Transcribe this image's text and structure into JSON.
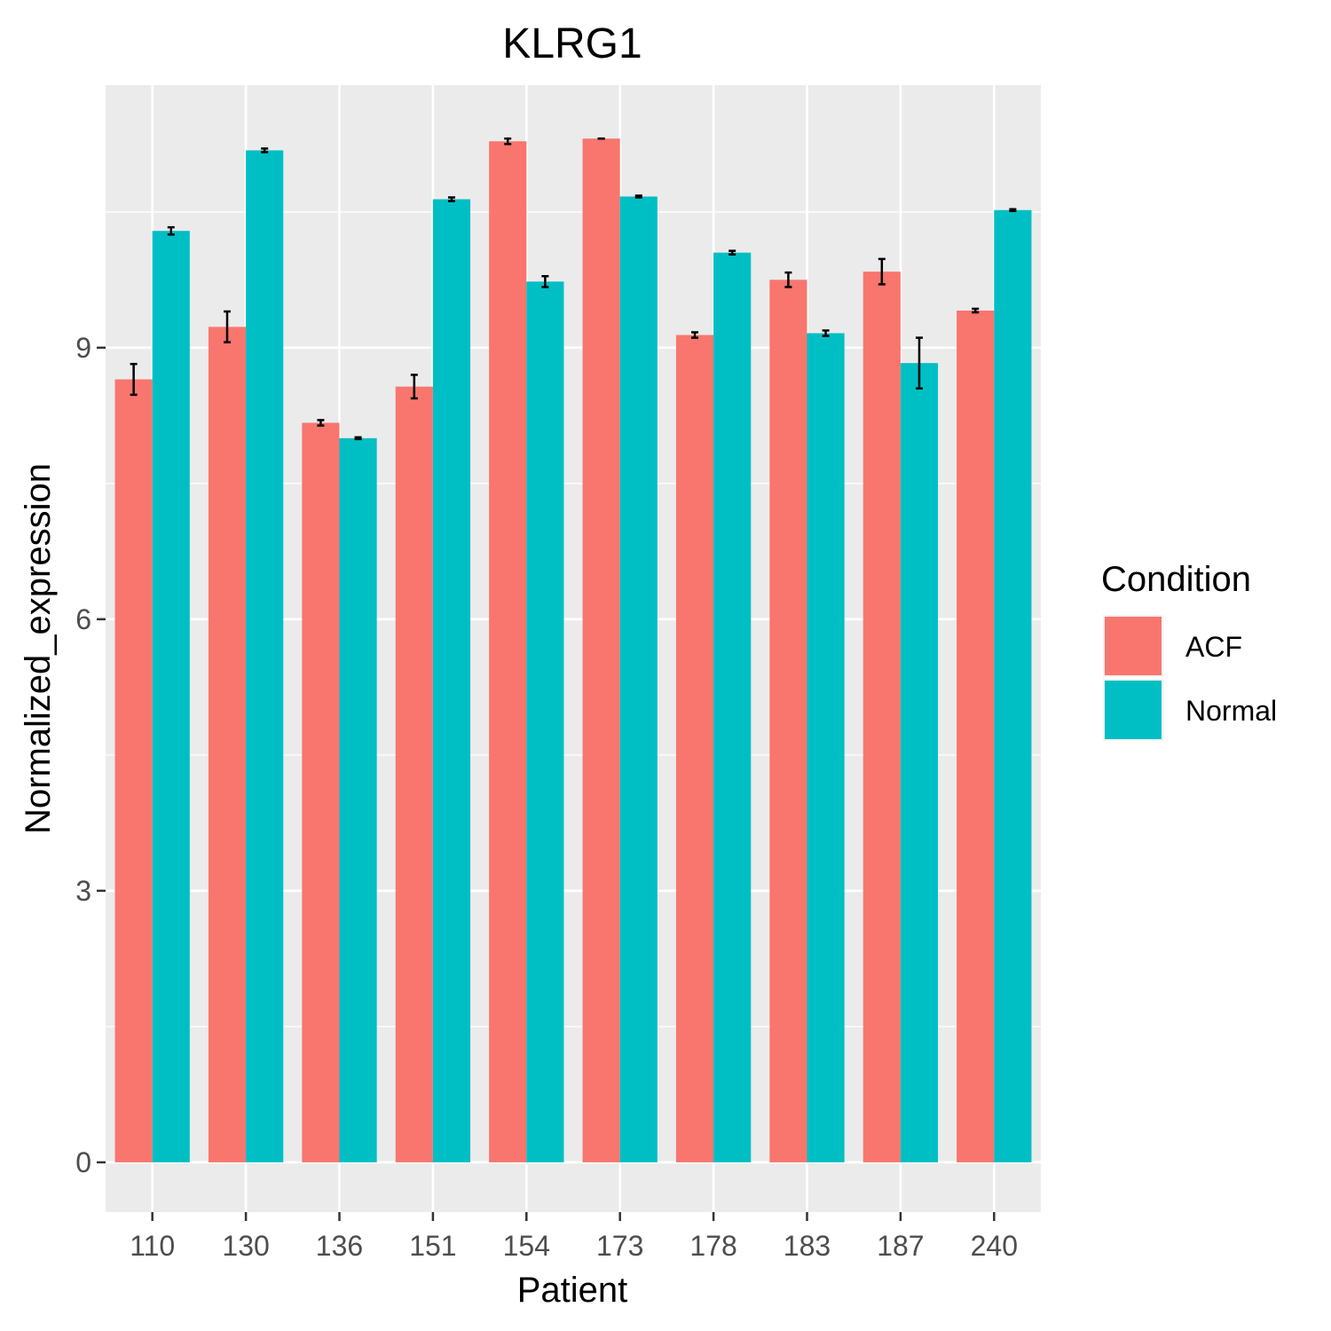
{
  "chart_data": {
    "type": "bar",
    "title": "KLRG1",
    "xlabel": "Patient",
    "ylabel": "Normalized_expression",
    "categories": [
      "110",
      "130",
      "136",
      "151",
      "154",
      "173",
      "178",
      "183",
      "187",
      "240"
    ],
    "series": [
      {
        "name": "ACF",
        "color": "#F8766D",
        "values": [
          8.65,
          9.23,
          8.17,
          8.57,
          11.28,
          11.31,
          9.14,
          9.75,
          9.84,
          9.41
        ],
        "error": [
          0.17,
          0.17,
          0.03,
          0.13,
          0.03,
          0.0,
          0.03,
          0.08,
          0.14,
          0.02
        ]
      },
      {
        "name": "Normal",
        "color": "#00BFC4",
        "values": [
          10.29,
          11.18,
          8.0,
          10.64,
          9.73,
          10.67,
          10.05,
          9.16,
          8.83,
          10.52
        ],
        "error": [
          0.04,
          0.02,
          0.01,
          0.02,
          0.06,
          0.01,
          0.02,
          0.03,
          0.28,
          0.01
        ]
      }
    ],
    "ylim": [
      -0.55,
      11.9
    ],
    "y_ticks": [
      0,
      3,
      6,
      9
    ],
    "grid": true,
    "legend": {
      "title": "Condition",
      "position": "right"
    }
  }
}
